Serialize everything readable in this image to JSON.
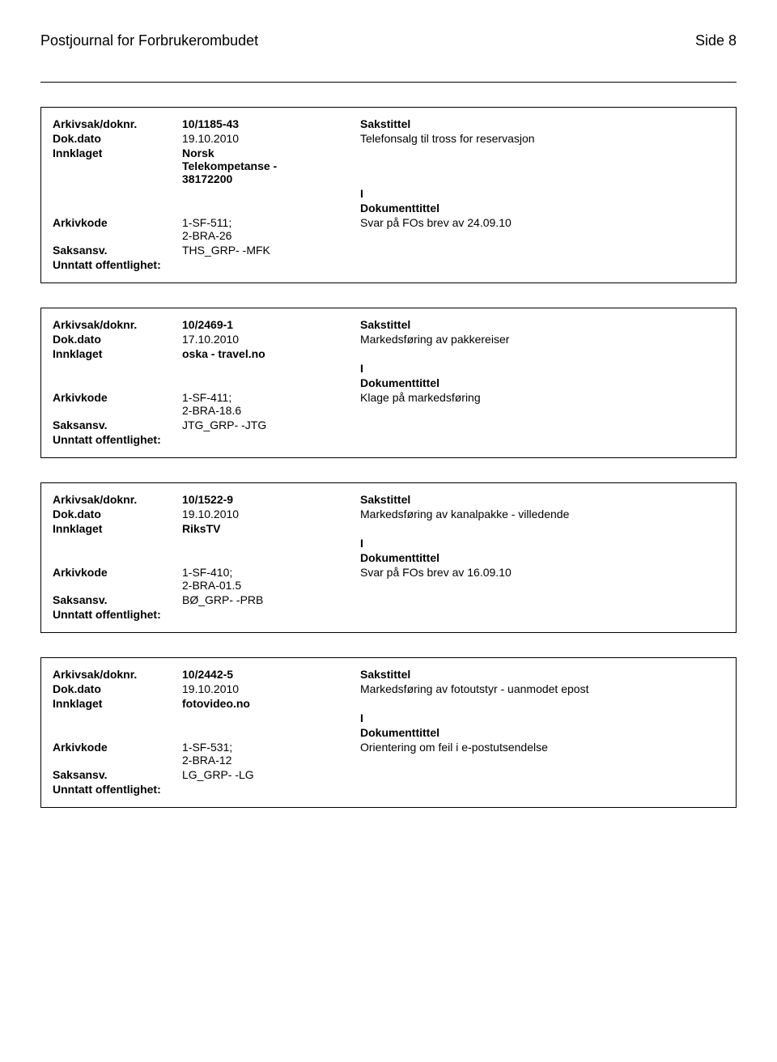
{
  "header": {
    "title": "Postjournal for Forbrukerombudet",
    "page_label": "Side 8"
  },
  "records": [
    {
      "arkivsak_label": "Arkivsak/doknr.",
      "arkivsak_value": "10/1185-43",
      "sakstittel_label": "Sakstittel",
      "dokdato_label": "Dok.dato",
      "dokdato_value": "19.10.2010",
      "sakstittel_value": "Telefonsalg til tross for reservasjon",
      "innklaget_label": "Innklaget",
      "innklaget_value": "Norsk\nTelekompetanse -\n38172200",
      "io_label": "I",
      "dokumenttittel_label": "Dokumenttittel",
      "arkivkode_label": "Arkivkode",
      "arkivkode_value": "1-SF-511;\n2-BRA-26",
      "dokumenttittel_value": "Svar på FOs brev av 24.09.10",
      "saksansv_label": "Saksansv.",
      "saksansv_value": "THS_GRP- -MFK",
      "unntatt_label": "Unntatt offentlighet:"
    },
    {
      "arkivsak_label": "Arkivsak/doknr.",
      "arkivsak_value": "10/2469-1",
      "sakstittel_label": "Sakstittel",
      "dokdato_label": "Dok.dato",
      "dokdato_value": "17.10.2010",
      "sakstittel_value": "Markedsføring av pakkereiser",
      "innklaget_label": "Innklaget",
      "innklaget_value": "oska - travel.no",
      "io_label": "I",
      "dokumenttittel_label": "Dokumenttittel",
      "arkivkode_label": "Arkivkode",
      "arkivkode_value": "1-SF-411;\n2-BRA-18.6",
      "dokumenttittel_value": "Klage på markedsføring",
      "saksansv_label": "Saksansv.",
      "saksansv_value": "JTG_GRP- -JTG",
      "unntatt_label": "Unntatt offentlighet:"
    },
    {
      "arkivsak_label": "Arkivsak/doknr.",
      "arkivsak_value": "10/1522-9",
      "sakstittel_label": "Sakstittel",
      "dokdato_label": "Dok.dato",
      "dokdato_value": "19.10.2010",
      "sakstittel_value": "Markedsføring av kanalpakke - villedende",
      "innklaget_label": "Innklaget",
      "innklaget_value": "RiksTV",
      "io_label": "I",
      "dokumenttittel_label": "Dokumenttittel",
      "arkivkode_label": "Arkivkode",
      "arkivkode_value": "1-SF-410;\n2-BRA-01.5",
      "dokumenttittel_value": "Svar på FOs brev av 16.09.10",
      "saksansv_label": "Saksansv.",
      "saksansv_value": "BØ_GRP- -PRB",
      "unntatt_label": "Unntatt offentlighet:"
    },
    {
      "arkivsak_label": "Arkivsak/doknr.",
      "arkivsak_value": "10/2442-5",
      "sakstittel_label": "Sakstittel",
      "dokdato_label": "Dok.dato",
      "dokdato_value": "19.10.2010",
      "sakstittel_value": "Markedsføring av fotoutstyr - uanmodet epost",
      "innklaget_label": "Innklaget",
      "innklaget_value": "fotovideo.no",
      "io_label": "I",
      "dokumenttittel_label": "Dokumenttittel",
      "arkivkode_label": "Arkivkode",
      "arkivkode_value": "1-SF-531;\n2-BRA-12",
      "dokumenttittel_value": "Orientering om feil i e-postutsendelse",
      "saksansv_label": "Saksansv.",
      "saksansv_value": "LG_GRP- -LG",
      "unntatt_label": "Unntatt offentlighet:"
    }
  ]
}
